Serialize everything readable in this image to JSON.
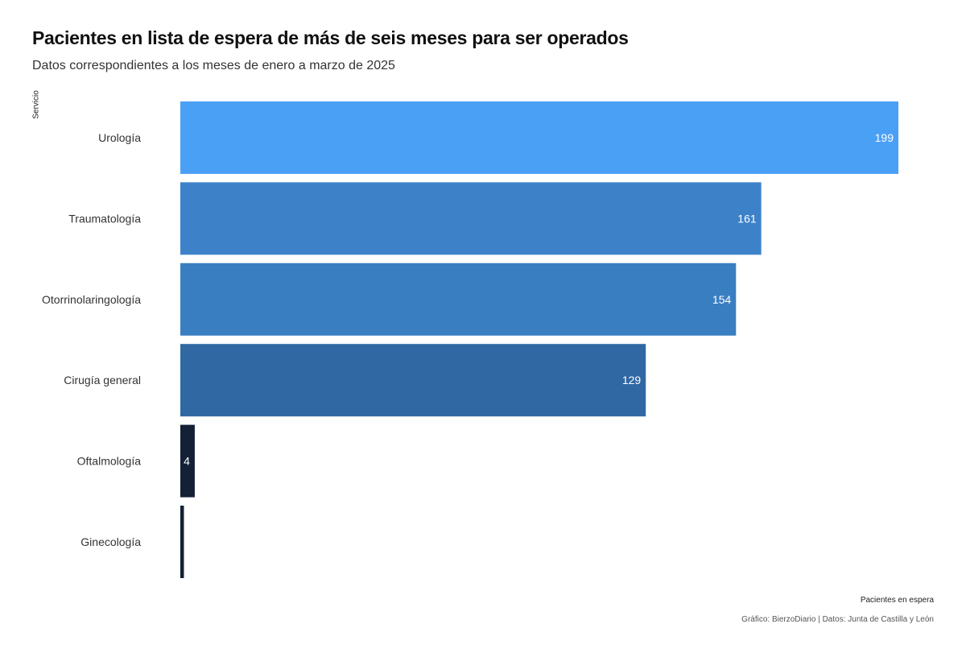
{
  "chart_data": {
    "type": "bar",
    "orientation": "horizontal",
    "title": "Pacientes en lista de espera de más de seis meses para ser operados",
    "subtitle": "Datos correspondientes a los meses de enero a marzo de 2025",
    "xlabel": "Pacientes en espera",
    "ylabel": "Servicio",
    "caption": "Gráfico: BierzoDiario | Datos: Junta de Castilla y León",
    "categories": [
      "Urología",
      "Traumatología",
      "Otorrinolaringología",
      "Cirugía general",
      "Oftalmología",
      "Ginecología"
    ],
    "values": [
      199,
      161,
      154,
      129,
      4,
      1
    ],
    "data_labels": [
      "199",
      "161",
      "154",
      "129",
      "4",
      ""
    ],
    "colors": [
      "#4aa0f5",
      "#3d82c9",
      "#3a7ec2",
      "#3068a3",
      "#132035",
      "#132035"
    ],
    "xlim": [
      0,
      199
    ],
    "grid": false,
    "legend": "none"
  }
}
